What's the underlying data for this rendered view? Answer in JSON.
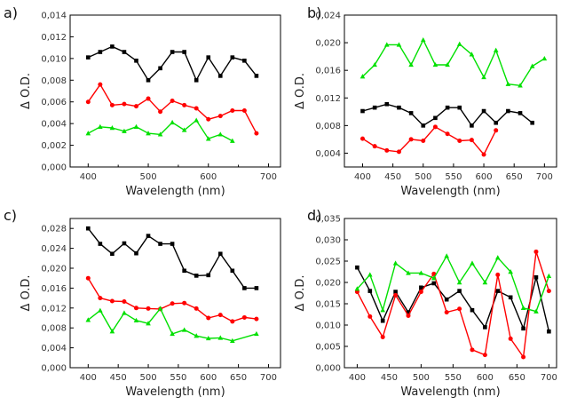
{
  "chart_data": [
    {
      "panel": "a)",
      "type": "line",
      "xlabel": "Wavelength (nm)",
      "ylabel": "Δ O.D.",
      "xlim": [
        370,
        720
      ],
      "ylim": [
        0,
        0.014
      ],
      "xticks": [
        400,
        500,
        600,
        700
      ],
      "xtick_labels": [
        "400",
        "500",
        "600",
        "700"
      ],
      "xminor": [
        450,
        550,
        650
      ],
      "yticks": [
        0,
        0.002,
        0.004,
        0.006,
        0.008,
        0.01,
        0.012,
        0.014
      ],
      "ytick_labels": [
        "0,000",
        "0,002",
        "0,004",
        "0,006",
        "0,008",
        "0,010",
        "0,012",
        "0,014"
      ],
      "series": [
        {
          "color": "#000000",
          "marker": "square",
          "x": [
            400,
            420,
            440,
            460,
            480,
            500,
            520,
            540,
            560,
            580,
            600,
            620,
            640,
            660,
            680
          ],
          "y": [
            0.0101,
            0.0106,
            0.0111,
            0.0106,
            0.0098,
            0.008,
            0.0091,
            0.0106,
            0.0106,
            0.008,
            0.0101,
            0.0084,
            0.0101,
            0.0098,
            0.0084
          ]
        },
        {
          "color": "#ff0000",
          "marker": "circle",
          "x": [
            400,
            420,
            440,
            460,
            480,
            500,
            520,
            540,
            560,
            580,
            600,
            620,
            640,
            660,
            680
          ],
          "y": [
            0.006,
            0.0076,
            0.0057,
            0.0058,
            0.0056,
            0.0063,
            0.0051,
            0.0061,
            0.0057,
            0.0054,
            0.0044,
            0.0047,
            0.0052,
            0.0052,
            0.0031
          ]
        },
        {
          "color": "#00e000",
          "marker": "triangle",
          "x": [
            400,
            420,
            440,
            460,
            480,
            500,
            520,
            540,
            560,
            580,
            600,
            620,
            640
          ],
          "y": [
            0.0031,
            0.0037,
            0.0036,
            0.0033,
            0.0037,
            0.0031,
            0.003,
            0.0041,
            0.0034,
            0.0043,
            0.0026,
            0.003,
            0.0024
          ]
        }
      ]
    },
    {
      "panel": "b)",
      "type": "line",
      "xlabel": "Wavelength (nm)",
      "ylabel": "Δ O.D.",
      "xlim": [
        370,
        720
      ],
      "ylim": [
        0.002,
        0.024
      ],
      "xticks": [
        400,
        450,
        500,
        550,
        600,
        650,
        700
      ],
      "xtick_labels": [
        "400",
        "450",
        "500",
        "550",
        "600",
        "650",
        "700"
      ],
      "xminor": [],
      "yticks": [
        0.004,
        0.008,
        0.012,
        0.016,
        0.02,
        0.024
      ],
      "ytick_labels": [
        "0,004",
        "0,008",
        "0,012",
        "0,016",
        "0,020",
        "0,024"
      ],
      "series": [
        {
          "color": "#00e000",
          "marker": "triangle",
          "x": [
            400,
            420,
            440,
            460,
            480,
            500,
            520,
            540,
            560,
            580,
            600,
            620,
            640,
            660,
            680,
            700
          ],
          "y": [
            0.0151,
            0.0168,
            0.0197,
            0.0197,
            0.0168,
            0.0204,
            0.0168,
            0.0168,
            0.0198,
            0.0183,
            0.015,
            0.0189,
            0.014,
            0.0138,
            0.0166,
            0.0177
          ]
        },
        {
          "color": "#000000",
          "marker": "square",
          "x": [
            400,
            420,
            440,
            460,
            480,
            500,
            520,
            540,
            560,
            580,
            600,
            620,
            640,
            660,
            680
          ],
          "y": [
            0.0101,
            0.0106,
            0.0111,
            0.0106,
            0.0098,
            0.008,
            0.0091,
            0.0106,
            0.0106,
            0.008,
            0.0101,
            0.0084,
            0.0101,
            0.0098,
            0.0084
          ]
        },
        {
          "color": "#ff0000",
          "marker": "circle",
          "x": [
            400,
            420,
            440,
            460,
            480,
            500,
            520,
            540,
            560,
            580,
            600,
            620
          ],
          "y": [
            0.0061,
            0.005,
            0.0044,
            0.0042,
            0.006,
            0.0058,
            0.0078,
            0.0068,
            0.0058,
            0.0059,
            0.0038,
            0.0073
          ]
        }
      ]
    },
    {
      "panel": "c)",
      "type": "line",
      "xlabel": "Wavelength (nm)",
      "ylabel": "Δ O.D.",
      "xlim": [
        370,
        720
      ],
      "ylim": [
        0,
        0.03
      ],
      "xticks": [
        400,
        450,
        500,
        550,
        600,
        650,
        700
      ],
      "xtick_labels": [
        "400",
        "450",
        "500",
        "550",
        "600",
        "650",
        "700"
      ],
      "xminor": [],
      "yticks": [
        0,
        0.004,
        0.008,
        0.012,
        0.016,
        0.02,
        0.024,
        0.028
      ],
      "ytick_labels": [
        "0,000",
        "0,004",
        "0,008",
        "0,012",
        "0,016",
        "0,020",
        "0,024",
        "0,028"
      ],
      "series": [
        {
          "color": "#000000",
          "marker": "square",
          "x": [
            400,
            420,
            440,
            460,
            480,
            500,
            520,
            540,
            560,
            580,
            600,
            620,
            640,
            660,
            680
          ],
          "y": [
            0.028,
            0.0249,
            0.0229,
            0.025,
            0.023,
            0.0265,
            0.0249,
            0.0249,
            0.0195,
            0.0185,
            0.0186,
            0.0229,
            0.0195,
            0.016,
            0.016
          ]
        },
        {
          "color": "#ff0000",
          "marker": "circle",
          "x": [
            400,
            420,
            440,
            460,
            480,
            500,
            520,
            540,
            560,
            580,
            600,
            620,
            640,
            660,
            680
          ],
          "y": [
            0.018,
            0.014,
            0.0134,
            0.0133,
            0.012,
            0.0119,
            0.0118,
            0.0129,
            0.013,
            0.0119,
            0.01,
            0.0106,
            0.0093,
            0.0101,
            0.0098
          ]
        },
        {
          "color": "#00e000",
          "marker": "triangle",
          "x": [
            400,
            420,
            440,
            460,
            480,
            500,
            520,
            540,
            560,
            580,
            600,
            620,
            640,
            680
          ],
          "y": [
            0.0096,
            0.0115,
            0.0073,
            0.011,
            0.0095,
            0.0089,
            0.0119,
            0.0068,
            0.0076,
            0.0064,
            0.0059,
            0.006,
            0.0054,
            0.0068
          ]
        }
      ]
    },
    {
      "panel": "d)",
      "type": "line",
      "xlabel": "Wavelength (nm)",
      "ylabel": "Δ O.D.",
      "xlim": [
        380,
        712
      ],
      "ylim": [
        0,
        0.035
      ],
      "xticks": [
        400,
        450,
        500,
        550,
        600,
        650,
        700
      ],
      "xtick_labels": [
        "400",
        "450",
        "500",
        "550",
        "600",
        "650",
        "700"
      ],
      "xminor": [],
      "yticks": [
        0,
        0.005,
        0.01,
        0.015,
        0.02,
        0.025,
        0.03,
        0.035
      ],
      "ytick_labels": [
        "0,000",
        "0,005",
        "0,010",
        "0,015",
        "0,020",
        "0,025",
        "0,030",
        "0,035"
      ],
      "series": [
        {
          "color": "#000000",
          "marker": "square",
          "x": [
            400,
            420,
            440,
            460,
            480,
            500,
            520,
            540,
            560,
            580,
            600,
            620,
            640,
            660,
            680,
            700
          ],
          "y": [
            0.0235,
            0.018,
            0.011,
            0.0178,
            0.013,
            0.0188,
            0.0198,
            0.016,
            0.018,
            0.0135,
            0.0095,
            0.018,
            0.0165,
            0.0092,
            0.0212,
            0.0085
          ]
        },
        {
          "color": "#ff0000",
          "marker": "circle",
          "x": [
            400,
            420,
            440,
            460,
            480,
            500,
            520,
            540,
            560,
            580,
            600,
            620,
            640,
            660,
            680,
            700
          ],
          "y": [
            0.0178,
            0.012,
            0.0072,
            0.017,
            0.0122,
            0.0178,
            0.022,
            0.013,
            0.0138,
            0.0042,
            0.003,
            0.0218,
            0.0068,
            0.0025,
            0.0272,
            0.018
          ]
        },
        {
          "color": "#00e000",
          "marker": "triangle",
          "x": [
            400,
            420,
            440,
            460,
            480,
            500,
            520,
            540,
            560,
            580,
            600,
            620,
            640,
            660,
            680,
            700
          ],
          "y": [
            0.0185,
            0.0218,
            0.0135,
            0.0245,
            0.0222,
            0.0222,
            0.021,
            0.0262,
            0.02,
            0.0245,
            0.02,
            0.0258,
            0.0225,
            0.014,
            0.0132,
            0.0215
          ]
        }
      ]
    }
  ]
}
